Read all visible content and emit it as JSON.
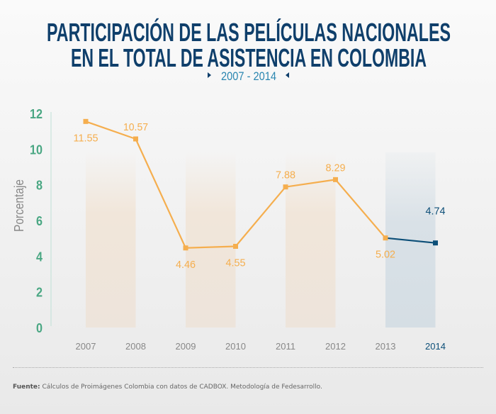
{
  "title_lines": [
    "PARTICIPACIÓN DE LAS PELÍCULAS NACIONALES",
    "EN EL TOTAL DE ASISTENCIA EN COLOMBIA"
  ],
  "subtitle": "2007 - 2014",
  "footer": {
    "label": "Fuente:",
    "text": "Cálculos de Proimágenes Colombia con datos de CADBOX. Metodología de Fedesarrollo."
  },
  "colors": {
    "title": "#0f3f6b",
    "series": "#f5ae4e",
    "highlight": "#0d4f78",
    "ytick": "#4aa783",
    "xtick": "#888888"
  },
  "chart_data": {
    "type": "line",
    "title": "PARTICIPACIÓN DE LAS PELÍCULAS NACIONALES EN EL TOTAL DE ASISTENCIA EN COLOMBIA",
    "subtitle": "2007 - 2014",
    "xlabel": "",
    "ylabel": "Porcentaje",
    "ylim": [
      0,
      12
    ],
    "yticks": [
      0,
      2,
      4,
      6,
      8,
      10,
      12
    ],
    "grid": false,
    "categories": [
      "2007",
      "2008",
      "2009",
      "2010",
      "2011",
      "2012",
      "2013",
      "2014"
    ],
    "values": [
      11.55,
      10.57,
      4.46,
      4.55,
      7.88,
      8.29,
      5.02,
      4.74
    ],
    "labels": [
      "11.55",
      "10.57",
      "4.46",
      "4.55",
      "7.88",
      "8.29",
      "5.02",
      "4.74"
    ],
    "label_side": [
      "below",
      "above",
      "below",
      "below",
      "above",
      "above",
      "below",
      "above"
    ],
    "highlight_category": "2014"
  }
}
